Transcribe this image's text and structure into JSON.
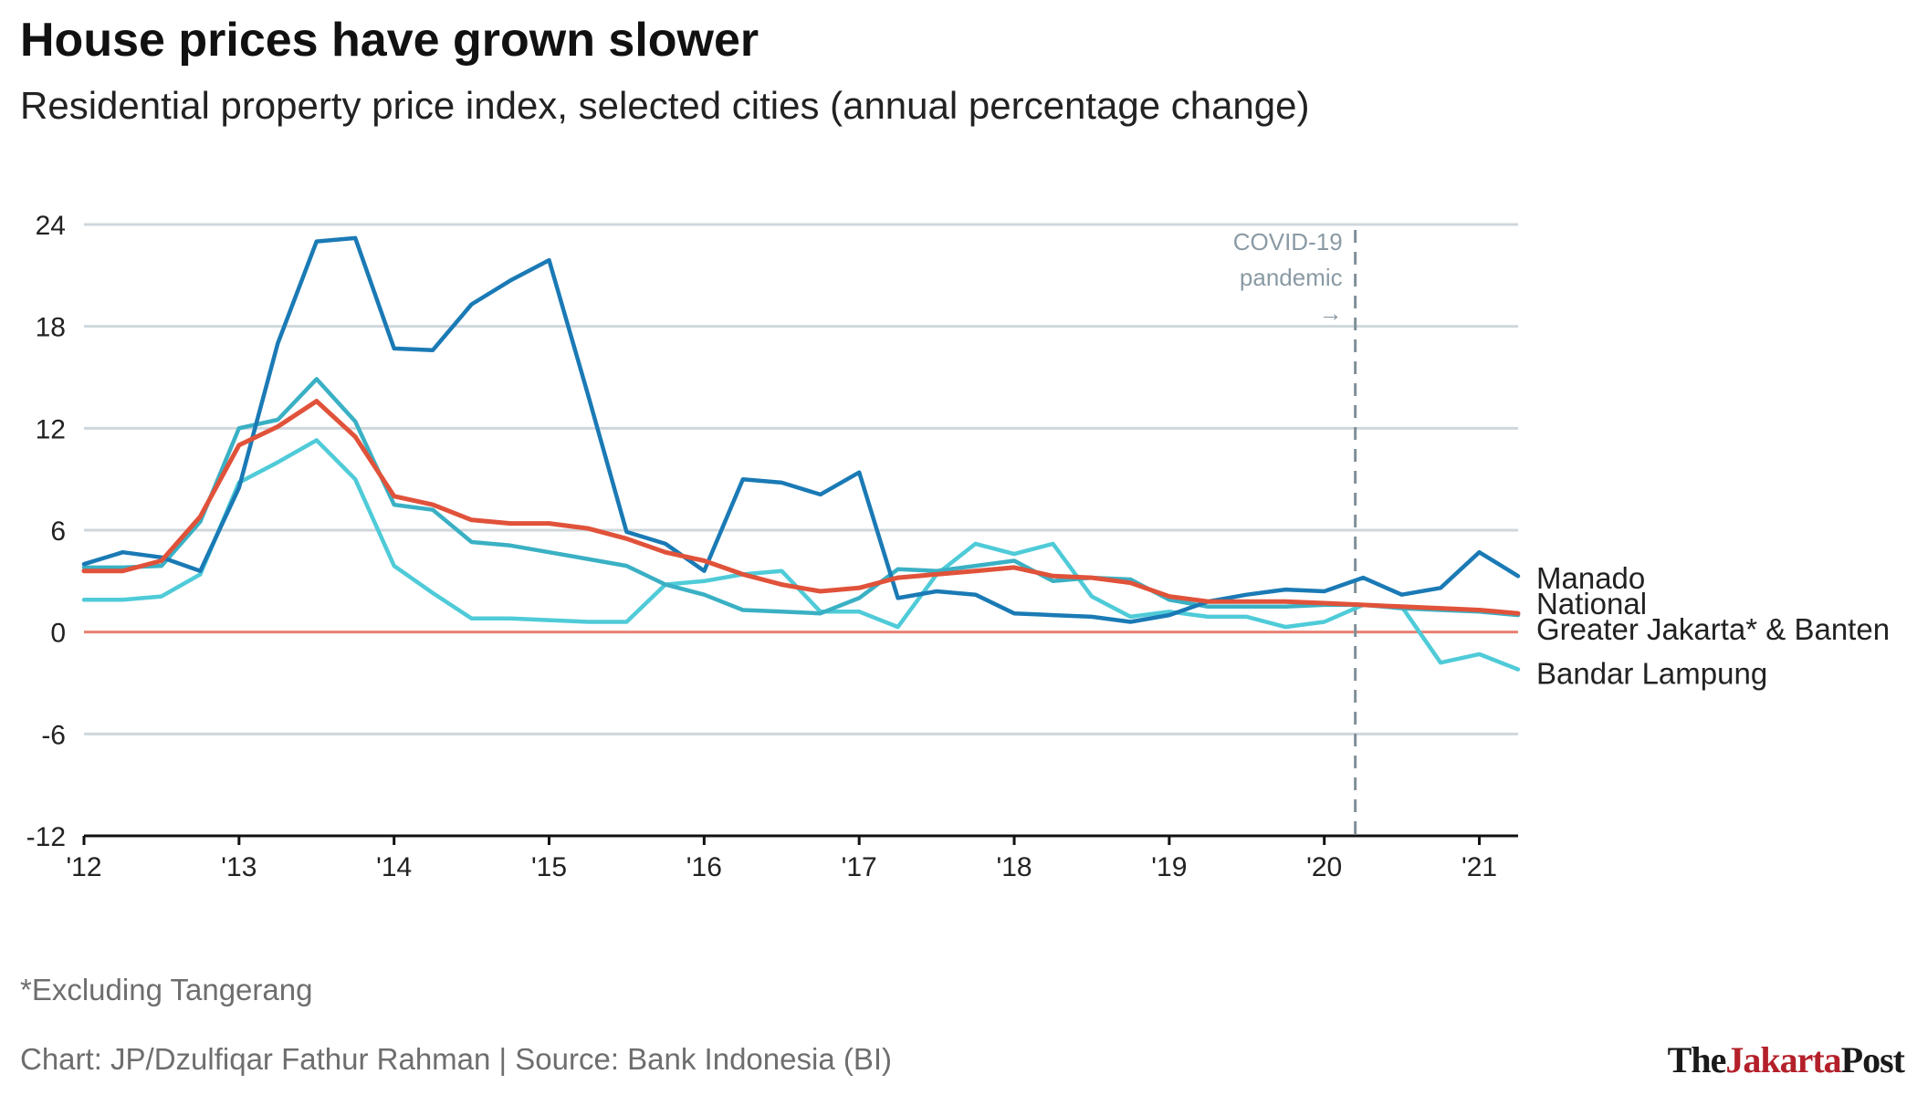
{
  "title": "House prices have grown slower",
  "subtitle": "Residential property price index, selected cities (annual percentage change)",
  "footnote": "*Excluding Tangerang",
  "source": "Chart: JP/Dzulfiqar Fathur Rahman | Source: Bank Indonesia (BI)",
  "logo": {
    "part1": "The",
    "part2": "Jakarta",
    "part3": "Post"
  },
  "annotation": {
    "line1": "COVID-19",
    "line2": "pandemic",
    "arrow": "→",
    "x": 2020.2
  },
  "colors": {
    "Manado": "#1a7ab5",
    "National": "#e0523a",
    "Greater Jakarta* & Banten": "#3ab0c4",
    "Bandar Lampung": "#4fcbd8",
    "grid": "#cfd7dc",
    "zero": "#e88070",
    "annotation": "#7f8f98"
  },
  "chart_data": {
    "type": "line",
    "title": "House prices have grown slower",
    "xlabel": "",
    "ylabel": "",
    "xlim": [
      2012,
      2021.25
    ],
    "ylim": [
      -12,
      24
    ],
    "yticks": [
      24,
      18,
      12,
      6,
      0,
      -6,
      -12
    ],
    "xticks": [
      {
        "value": 2012,
        "label": "'12"
      },
      {
        "value": 2013,
        "label": "'13"
      },
      {
        "value": 2014,
        "label": "'14"
      },
      {
        "value": 2015,
        "label": "'15"
      },
      {
        "value": 2016,
        "label": "'16"
      },
      {
        "value": 2017,
        "label": "'17"
      },
      {
        "value": 2018,
        "label": "'18"
      },
      {
        "value": 2019,
        "label": "'19"
      },
      {
        "value": 2020,
        "label": "'20"
      },
      {
        "value": 2021,
        "label": "'21"
      }
    ],
    "x": [
      2012,
      2012.25,
      2012.5,
      2012.75,
      2013,
      2013.25,
      2013.5,
      2013.75,
      2014,
      2014.25,
      2014.5,
      2014.75,
      2015,
      2015.25,
      2015.5,
      2015.75,
      2016,
      2016.25,
      2016.5,
      2016.75,
      2017,
      2017.25,
      2017.5,
      2017.75,
      2018,
      2018.25,
      2018.5,
      2018.75,
      2019,
      2019.25,
      2019.5,
      2019.75,
      2020,
      2020.25,
      2020.5,
      2020.75,
      2021,
      2021.25
    ],
    "series": [
      {
        "name": "Manado",
        "values": [
          4.0,
          4.7,
          4.4,
          3.6,
          8.5,
          17.0,
          23.0,
          23.2,
          16.7,
          16.6,
          19.3,
          20.7,
          21.9,
          14.0,
          5.9,
          5.2,
          3.6,
          9.0,
          8.8,
          8.1,
          9.4,
          2.0,
          2.4,
          2.2,
          1.1,
          1.0,
          0.9,
          0.6,
          1.0,
          1.8,
          2.2,
          2.5,
          2.4,
          3.2,
          2.2,
          2.6,
          4.7,
          3.3
        ]
      },
      {
        "name": "National",
        "values": [
          3.6,
          3.6,
          4.2,
          6.8,
          11.0,
          12.1,
          13.6,
          11.5,
          8.0,
          7.5,
          6.6,
          6.4,
          6.4,
          6.1,
          5.5,
          4.7,
          4.2,
          3.4,
          2.8,
          2.4,
          2.6,
          3.2,
          3.4,
          3.6,
          3.8,
          3.3,
          3.2,
          2.9,
          2.1,
          1.8,
          1.8,
          1.8,
          1.7,
          1.6,
          1.5,
          1.4,
          1.3,
          1.1
        ]
      },
      {
        "name": "Greater Jakarta* & Banten",
        "values": [
          3.8,
          3.8,
          3.9,
          6.5,
          12.0,
          12.5,
          14.9,
          12.4,
          7.5,
          7.2,
          5.3,
          5.1,
          4.7,
          4.3,
          3.9,
          2.8,
          2.2,
          1.3,
          1.2,
          1.1,
          2.0,
          3.7,
          3.6,
          3.9,
          4.2,
          3.0,
          3.2,
          3.1,
          1.9,
          1.5,
          1.5,
          1.5,
          1.6,
          1.6,
          1.4,
          1.3,
          1.2,
          1.0
        ]
      },
      {
        "name": "Bandar Lampung",
        "values": [
          1.9,
          1.9,
          2.1,
          3.4,
          8.8,
          10.0,
          11.3,
          9.0,
          3.9,
          2.3,
          0.8,
          0.8,
          0.7,
          0.6,
          0.6,
          2.8,
          3.0,
          3.4,
          3.6,
          1.2,
          1.2,
          0.3,
          3.4,
          5.2,
          4.6,
          5.2,
          2.1,
          0.9,
          1.2,
          0.9,
          0.9,
          0.3,
          0.6,
          1.6,
          1.5,
          -1.8,
          -1.3,
          -2.2
        ]
      }
    ],
    "labels": [
      {
        "series": "Manado",
        "text": "Manado",
        "y": 3.2
      },
      {
        "series": "National",
        "text": "National",
        "y": 1.7
      },
      {
        "series": "Greater Jakarta* & Banten",
        "text": "Greater Jakarta* & Banten",
        "y": 0.2
      },
      {
        "series": "Bandar Lampung",
        "text": "Bandar Lampung",
        "y": -2.4
      }
    ]
  }
}
